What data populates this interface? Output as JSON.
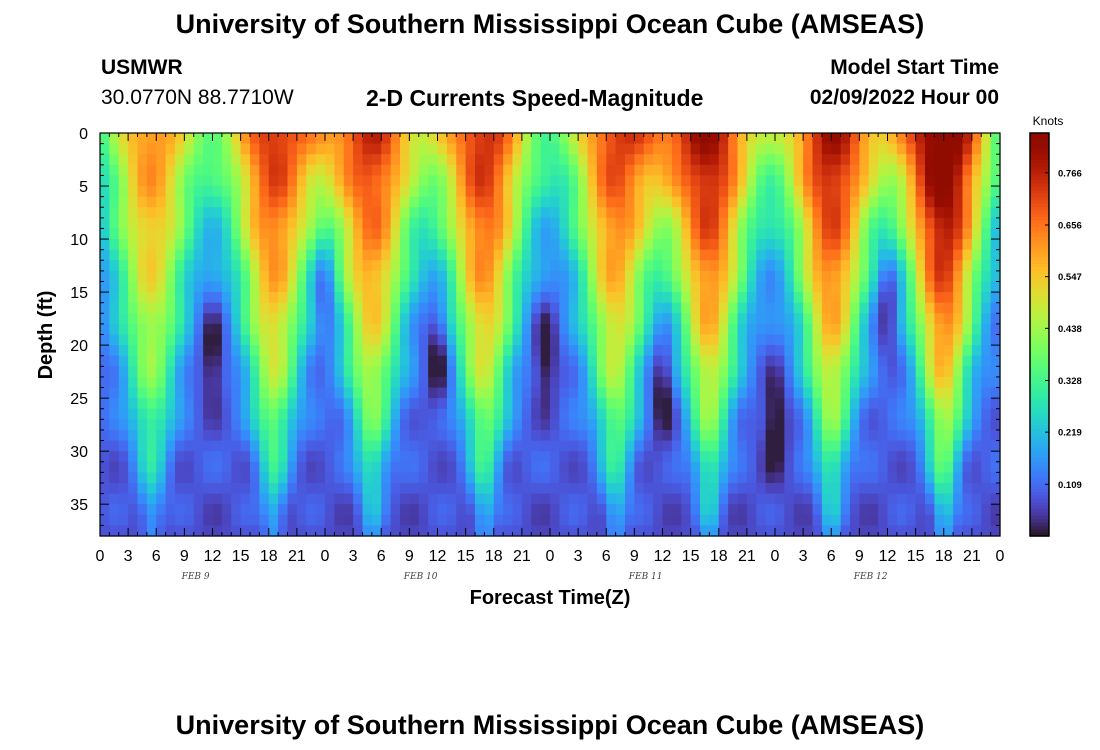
{
  "header": {
    "title": "University of Southern Mississippi Ocean Cube (AMSEAS)",
    "station": "USMWR",
    "location": "30.0770N  88.7710W",
    "plot_title": "2-D Currents Speed-Magnitude",
    "start_label": "Model Start Time",
    "start_value": "02/09/2022 Hour 00",
    "footer_title": "University of Southern Mississippi Ocean Cube (AMSEAS)"
  },
  "chart_data": {
    "type": "heatmap",
    "title": "2-D Currents Speed-Magnitude",
    "xlabel": "Forecast Time(Z)",
    "ylabel": "Depth (ft)",
    "x_range_hours": [
      0,
      96
    ],
    "y_range_ft": [
      0,
      38
    ],
    "x_tick_labels": [
      "0",
      "3",
      "6",
      "9",
      "12",
      "15",
      "18",
      "21",
      "0",
      "3",
      "6",
      "9",
      "12",
      "15",
      "18",
      "21",
      "0",
      "3",
      "6",
      "9",
      "12",
      "15",
      "18",
      "21",
      "0",
      "3",
      "6",
      "9",
      "12",
      "15",
      "18",
      "21",
      "0"
    ],
    "y_ticks": [
      0,
      5,
      10,
      15,
      20,
      25,
      30,
      35
    ],
    "date_labels": [
      "FEB 9",
      "FEB 10",
      "FEB 11",
      "FEB 12"
    ],
    "colorbar": {
      "unit": "Knots",
      "range": [
        0,
        0.85
      ],
      "tick_labels": [
        "0.766",
        "0.656",
        "0.547",
        "0.438",
        "0.328",
        "0.219",
        "0.109"
      ]
    },
    "tidal_peaks": [
      {
        "hour": 5.5,
        "max": 0.52
      },
      {
        "hour": 18.5,
        "max": 0.62
      },
      {
        "hour": 29.0,
        "max": 0.62
      },
      {
        "hour": 41.0,
        "max": 0.64
      },
      {
        "hour": 55.0,
        "max": 0.6
      },
      {
        "hour": 65.0,
        "max": 0.68
      },
      {
        "hour": 78.0,
        "max": 0.68
      },
      {
        "hour": 90.0,
        "max": 0.78
      }
    ],
    "tidal_minima": [
      {
        "hour": 12.0,
        "depth": 21,
        "min": 0.03
      },
      {
        "hour": 24.0,
        "depth": 14,
        "min": 0.05
      },
      {
        "hour": 36.0,
        "depth": 21,
        "min": 0.04
      },
      {
        "hour": 47.5,
        "depth": 21,
        "min": 0.05
      },
      {
        "hour": 60.0,
        "depth": 24,
        "min": 0.06
      },
      {
        "hour": 72.0,
        "depth": 27,
        "min": 0.01
      },
      {
        "hour": 84.0,
        "depth": 16,
        "min": 0.1
      }
    ]
  }
}
